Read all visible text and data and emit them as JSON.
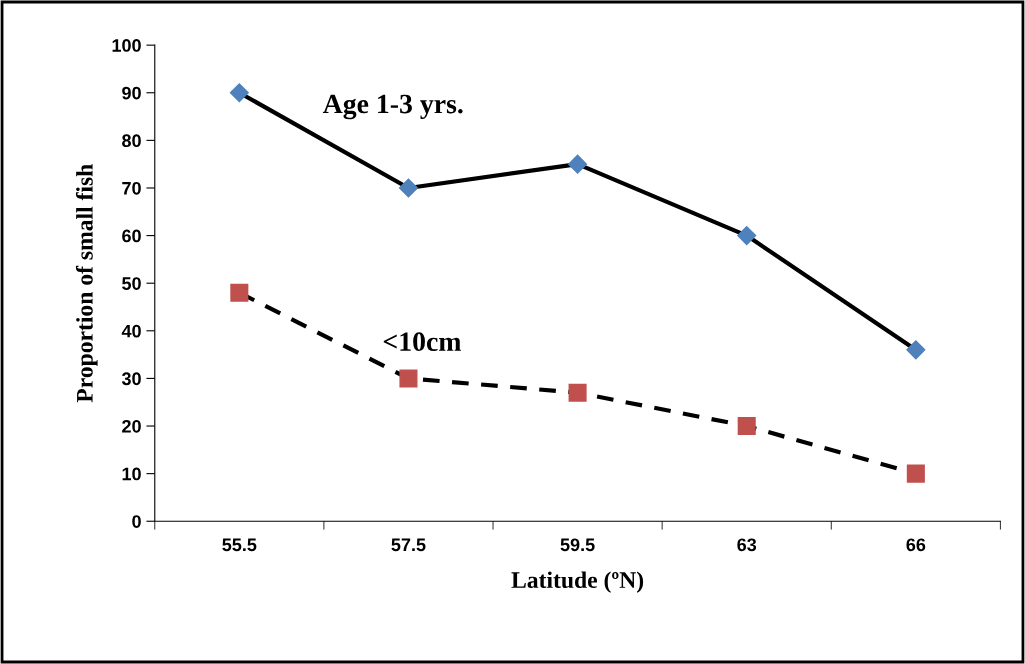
{
  "chart_data": {
    "type": "line",
    "xlabel": "Latitude (ºN)",
    "ylabel": "Proportion of small fish",
    "categories": [
      "55.5",
      "57.5",
      "59.5",
      "63",
      "66"
    ],
    "series": [
      {
        "name": "Age 1-3 yrs.",
        "color": "#4f81bd",
        "marker": "diamond",
        "line_style": "solid",
        "values": [
          90,
          70,
          75,
          60,
          36
        ]
      },
      {
        "name": "<10cm",
        "color": "#c0504d",
        "marker": "square",
        "line_style": "dashed",
        "values": [
          48,
          30,
          27,
          20,
          10
        ]
      }
    ],
    "ylim": [
      0,
      100
    ],
    "yticks": [
      0,
      10,
      20,
      30,
      40,
      50,
      60,
      70,
      80,
      90,
      100
    ],
    "grid": false,
    "legend": false
  }
}
